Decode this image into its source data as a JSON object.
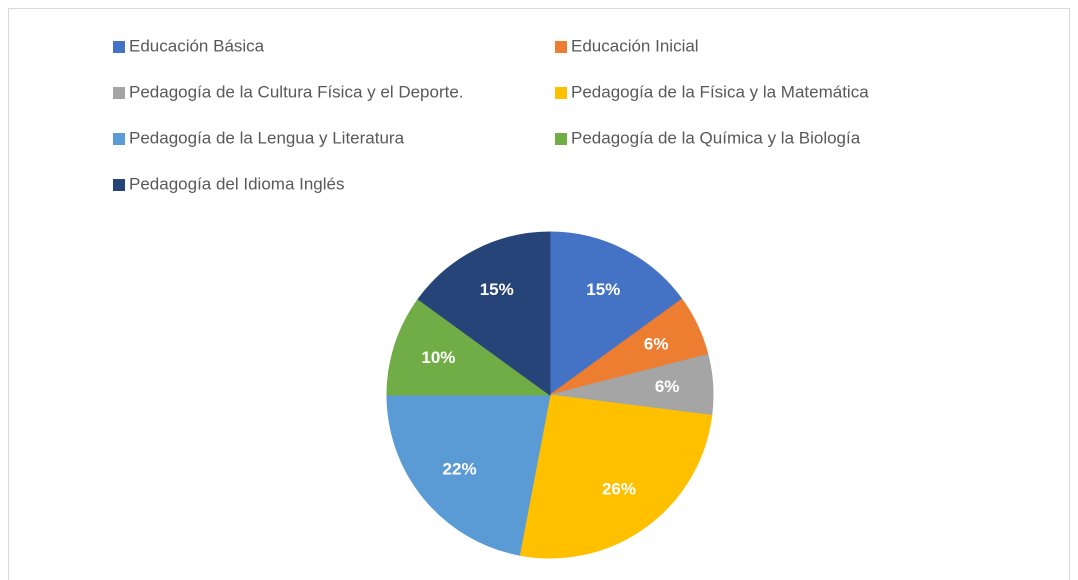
{
  "chart_data": {
    "type": "pie",
    "categories": [
      "Educación Básica",
      "Educación Inicial",
      "Pedagogía de la Cultura Física y el Deporte.",
      "Pedagogía de la Física y la Matemática",
      "Pedagogía de la Lengua y Literatura",
      "Pedagogía de la Química y la Biología",
      "Pedagogía del Idioma Inglés"
    ],
    "values": [
      15,
      6,
      6,
      26,
      22,
      10,
      15
    ],
    "value_labels": [
      "15%",
      "6%",
      "6%",
      "26%",
      "22%",
      "10%",
      "15%"
    ],
    "colors": [
      "#4472c4",
      "#ed7d31",
      "#a5a5a5",
      "#ffc000",
      "#5b9bd5",
      "#70ad47",
      "#264478"
    ],
    "legend": "top"
  }
}
